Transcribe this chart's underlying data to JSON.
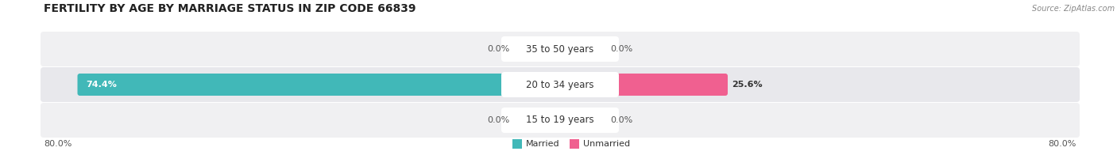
{
  "title": "FERTILITY BY AGE BY MARRIAGE STATUS IN ZIP CODE 66839",
  "source": "Source: ZipAtlas.com",
  "categories": [
    "15 to 19 years",
    "20 to 34 years",
    "35 to 50 years"
  ],
  "married_pct": [
    0.0,
    74.4,
    0.0
  ],
  "unmarried_pct": [
    0.0,
    25.6,
    0.0
  ],
  "axis_left_label": "80.0%",
  "axis_right_label": "80.0%",
  "max_val": 80.0,
  "married_color": "#41b8b8",
  "married_color_light": "#93d8d8",
  "unmarried_color": "#f06090",
  "unmarried_color_light": "#f5a0c0",
  "row_bg_color_odd": "#f0f0f2",
  "row_bg_color_even": "#e8e8ec",
  "title_fontsize": 10,
  "label_fontsize": 8.5,
  "bar_label_fontsize": 8,
  "tick_fontsize": 8
}
